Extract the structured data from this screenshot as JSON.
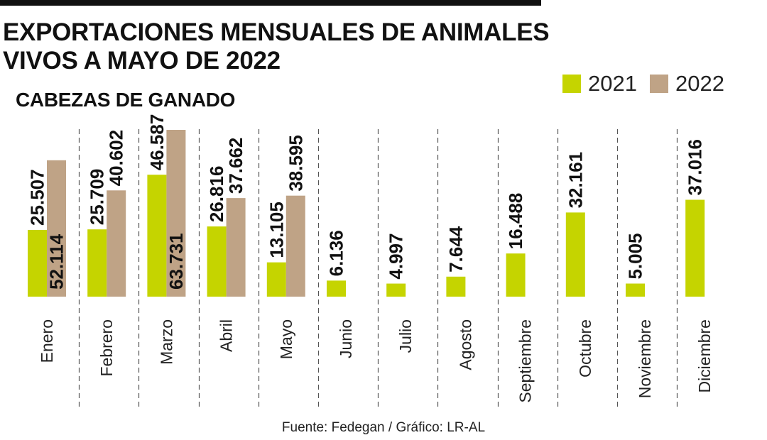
{
  "title_lines": [
    "EXPORTACIONES MENSUALES DE ANIMALES",
    "VIVOS A MAYO DE 2022"
  ],
  "subtitle": "CABEZAS DE GANADO",
  "source": "Fuente: Fedegan / Gráfico: LR-AL",
  "colors": {
    "s2021": "#c5d400",
    "s2022": "#bfa386",
    "rule": "#111111",
    "divider": "#555555"
  },
  "chart_data": {
    "type": "bar",
    "title": "EXPORTACIONES MENSUALES DE ANIMALES VIVOS A MAYO DE 2022",
    "subtitle": "CABEZAS DE GANADO",
    "xlabel": "",
    "ylabel": "",
    "ylim": [
      0,
      64000
    ],
    "legend_position": "top-right",
    "grid": false,
    "categories": [
      "Enero",
      "Febrero",
      "Marzo",
      "Abril",
      "Mayo",
      "Junio",
      "Julio",
      "Agosto",
      "Septiembre",
      "Octubre",
      "Noviembre",
      "Diciembre"
    ],
    "series": [
      {
        "name": "2021",
        "values": [
          25507,
          25709,
          46587,
          26816,
          13105,
          6136,
          4997,
          7644,
          16488,
          32161,
          5005,
          37016
        ],
        "labels": [
          "25.507",
          "25.709",
          "46.587",
          "26.816",
          "13.105",
          "6.136",
          "4.997",
          "7.644",
          "16.488",
          "32.161",
          "5.005",
          "37.016"
        ]
      },
      {
        "name": "2022",
        "values": [
          52114,
          40602,
          63731,
          37662,
          38595,
          null,
          null,
          null,
          null,
          null,
          null,
          null
        ],
        "labels": [
          "52.114",
          "40.602",
          "63.731",
          "37.662",
          "38.595",
          null,
          null,
          null,
          null,
          null,
          null,
          null
        ]
      }
    ]
  }
}
